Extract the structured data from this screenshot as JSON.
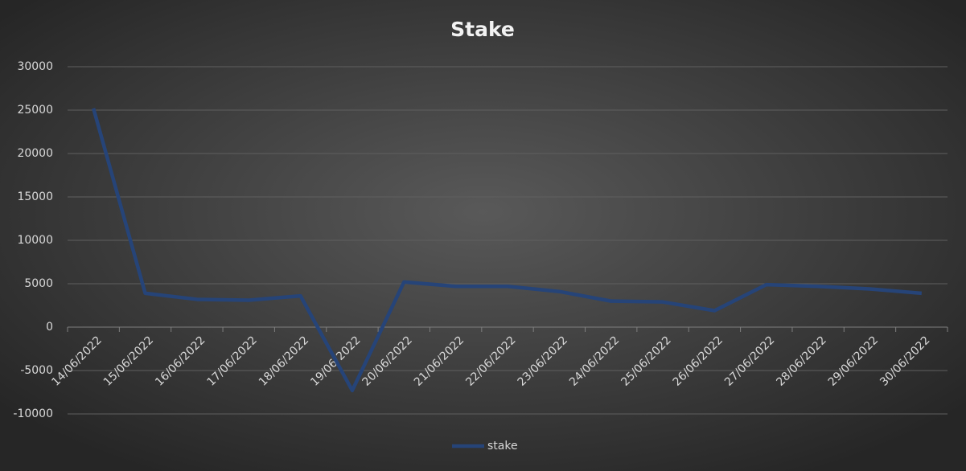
{
  "chart_data": {
    "type": "line",
    "title": "Stake",
    "categories": [
      "14/06/2022",
      "15/06/2022",
      "16/06/2022",
      "17/06/2022",
      "18/06/2022",
      "19/06/2022",
      "20/06/2022",
      "21/06/2022",
      "22/06/2022",
      "23/06/2022",
      "24/06/2022",
      "25/06/2022",
      "26/06/2022",
      "27/06/2022",
      "28/06/2022",
      "29/06/2022",
      "30/06/2022"
    ],
    "series": [
      {
        "name": "stake",
        "color": "#264478",
        "values": [
          25200,
          3900,
          3200,
          3100,
          3600,
          -7300,
          5200,
          4700,
          4700,
          4100,
          3000,
          2900,
          1900,
          4900,
          4700,
          4400,
          3900
        ]
      }
    ],
    "ylim": [
      -10000,
      30000
    ],
    "yticks": [
      -10000,
      -5000,
      0,
      5000,
      10000,
      15000,
      20000,
      25000,
      30000
    ],
    "grid": true,
    "legend": "bottom"
  }
}
